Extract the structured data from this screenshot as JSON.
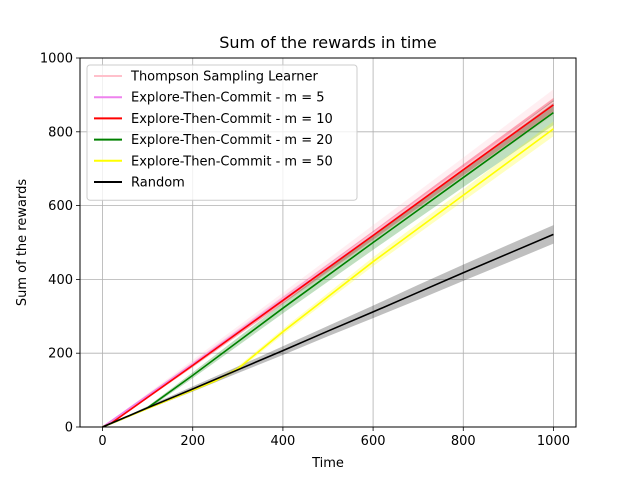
{
  "chart_data": {
    "type": "line",
    "title": "Sum of the rewards in time",
    "xlabel": "Time",
    "ylabel": "Sum of the rewards",
    "xlim": [
      -50,
      1050
    ],
    "ylim": [
      0,
      1000
    ],
    "x_ticks": [
      0,
      200,
      400,
      600,
      800,
      1000
    ],
    "y_ticks": [
      0,
      200,
      400,
      600,
      800,
      1000
    ],
    "x_tick_labels": [
      "0",
      "200",
      "400",
      "600",
      "800",
      "1000"
    ],
    "y_tick_labels": [
      "0",
      "200",
      "400",
      "600",
      "800",
      "1000"
    ],
    "grid": true,
    "legend_position": "upper-left",
    "series": [
      {
        "name": "Thompson Sampling Learner",
        "color": "#ffc0cb",
        "x": [
          0,
          200,
          400,
          600,
          800,
          1000
        ],
        "y": [
          0,
          172,
          348,
          525,
          702,
          880
        ],
        "band": [
          [
            0,
            0
          ],
          [
            162,
            182
          ],
          [
            332,
            364
          ],
          [
            503,
            547
          ],
          [
            674,
            730
          ],
          [
            845,
            915
          ]
        ]
      },
      {
        "name": "Explore-Then-Commit - m = 5",
        "color": "#ee82ee",
        "x": [
          0,
          200,
          400,
          600,
          800,
          1000
        ],
        "y": [
          0,
          170,
          345,
          520,
          697,
          873
        ],
        "band": [
          [
            0,
            0
          ],
          [
            164,
            176
          ],
          [
            335,
            355
          ],
          [
            508,
            532
          ],
          [
            682,
            712
          ],
          [
            856,
            890
          ]
        ]
      },
      {
        "name": "Explore-Then-Commit - m = 10",
        "color": "#ff0000",
        "x": [
          0,
          20,
          200,
          400,
          600,
          800,
          1000
        ],
        "y": [
          0,
          11,
          167,
          343,
          519,
          697,
          873
        ],
        "band": [
          [
            0,
            0
          ],
          [
            10,
            12
          ],
          [
            162,
            172
          ],
          [
            334,
            352
          ],
          [
            507,
            531
          ],
          [
            682,
            712
          ],
          [
            854,
            892
          ]
        ]
      },
      {
        "name": "Explore-Then-Commit - m = 20",
        "color": "#008000",
        "x": [
          0,
          40,
          100,
          200,
          400,
          600,
          800,
          1000
        ],
        "y": [
          0,
          20,
          52,
          140,
          322,
          500,
          676,
          852
        ],
        "band": [
          [
            0,
            0
          ],
          [
            18,
            22
          ],
          [
            48,
            56
          ],
          [
            132,
            148
          ],
          [
            308,
            336
          ],
          [
            480,
            520
          ],
          [
            650,
            702
          ],
          [
            818,
            886
          ]
        ]
      },
      {
        "name": "Explore-Then-Commit - m = 50",
        "color": "#ffff00",
        "x": [
          0,
          100,
          200,
          250,
          300,
          400,
          600,
          800,
          1000
        ],
        "y": [
          0,
          50,
          100,
          125,
          158,
          258,
          448,
          628,
          808
        ],
        "band": [
          [
            0,
            0
          ],
          [
            48,
            52
          ],
          [
            97,
            103
          ],
          [
            121,
            129
          ],
          [
            152,
            164
          ],
          [
            250,
            266
          ],
          [
            436,
            460
          ],
          [
            612,
            644
          ],
          [
            788,
            828
          ]
        ]
      },
      {
        "name": "Random",
        "color": "#000000",
        "x": [
          0,
          100,
          200,
          300,
          400,
          500,
          600,
          700,
          800,
          900,
          1000
        ],
        "y": [
          0,
          52,
          103,
          155,
          207,
          260,
          312,
          365,
          418,
          470,
          522
        ],
        "band": [
          [
            0,
            0
          ],
          [
            48,
            56
          ],
          [
            96,
            110
          ],
          [
            146,
            164
          ],
          [
            195,
            219
          ],
          [
            246,
            274
          ],
          [
            295,
            329
          ],
          [
            345,
            385
          ],
          [
            396,
            440
          ],
          [
            446,
            494
          ],
          [
            497,
            547
          ]
        ]
      }
    ]
  }
}
